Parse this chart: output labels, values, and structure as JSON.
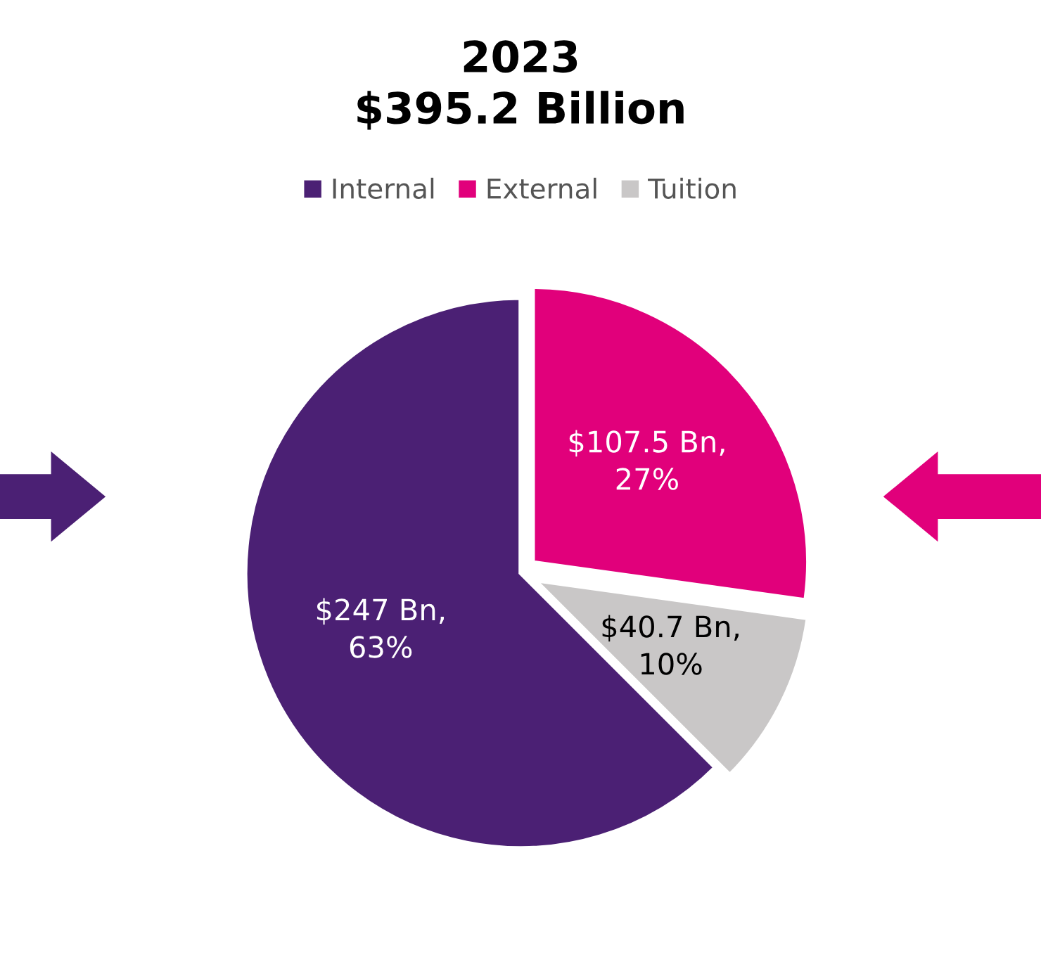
{
  "chart_data": {
    "type": "pie",
    "title": "2023\n$395.2 Billion",
    "categories": [
      "Internal",
      "External",
      "Tuition"
    ],
    "values": [
      247,
      107.5,
      40.7
    ],
    "colors": [
      "#4b2074",
      "#e1007b",
      "#c9c7c7"
    ],
    "value_labels": [
      "$247 Bn,\n63%",
      "$107.5 Bn,\n27%",
      "$40.7 Bn,\n10%"
    ],
    "legend": "top"
  }
}
